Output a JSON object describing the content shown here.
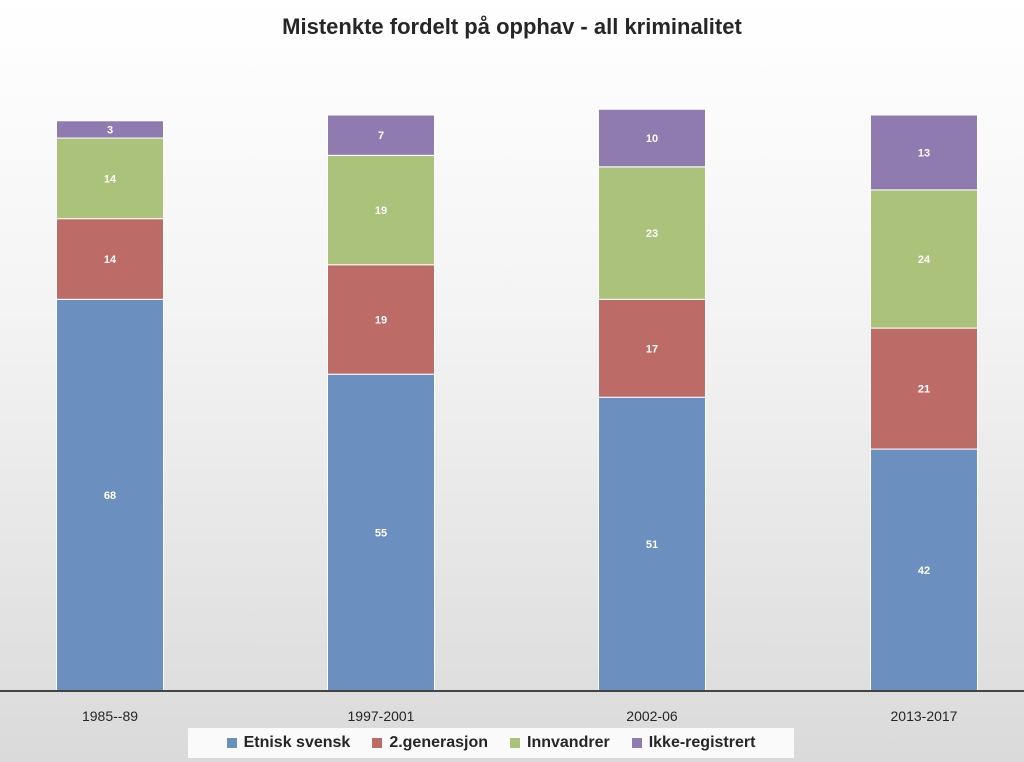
{
  "chart_data": {
    "type": "bar",
    "stacked": true,
    "title": "Mistenkte fordelt på opphav - all kriminalitet",
    "xlabel": "",
    "ylabel": "",
    "ylim": [
      0,
      100
    ],
    "grid": false,
    "legend_position": "bottom",
    "categories": [
      "1985--89",
      "1997-2001",
      "2002-06",
      "2013-2017"
    ],
    "series": [
      {
        "name": "Etnisk svensk",
        "color": "#6B8FBF",
        "values": [
          68,
          55,
          51,
          42
        ]
      },
      {
        "name": "2.generasjon",
        "color": "#BD6B67",
        "values": [
          14,
          19,
          17,
          21
        ]
      },
      {
        "name": "Innvandrer",
        "color": "#ABC27A",
        "values": [
          14,
          19,
          23,
          24
        ]
      },
      {
        "name": "Ikke-registrert",
        "color": "#8F7BB0",
        "values": [
          3,
          7,
          10,
          13
        ]
      }
    ]
  }
}
